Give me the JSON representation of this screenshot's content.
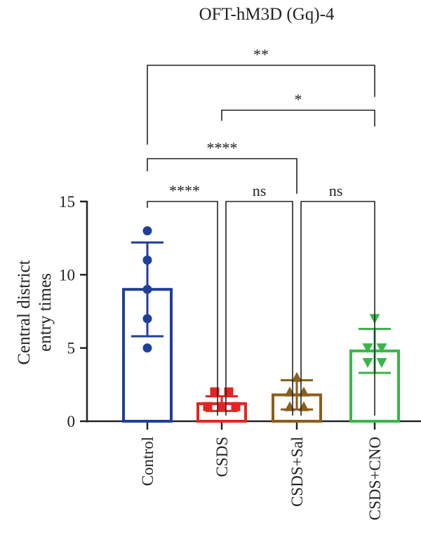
{
  "chart_data": {
    "type": "bar",
    "title": "OFT-hM3D (Gq)-4",
    "xlabel": "",
    "ylabel": [
      "Central district",
      "entry times"
    ],
    "ylim": [
      0,
      15
    ],
    "yticks": [
      0,
      5,
      10,
      15
    ],
    "grid": false,
    "categories": [
      "Control",
      "CSDS",
      "CSDS+Sal",
      "CSDS+CNO"
    ],
    "colors": [
      "#1f3f9a",
      "#e52421",
      "#8b5e1a",
      "#3bb54a"
    ],
    "markers": [
      "circle",
      "square",
      "triangle-up",
      "triangle-down"
    ],
    "values": [
      9.0,
      1.2,
      1.8,
      4.8
    ],
    "sd": [
      3.2,
      0.5,
      1.0,
      1.5
    ],
    "points": [
      [
        13,
        11,
        9,
        7,
        5
      ],
      [
        2,
        2,
        1,
        1,
        1
      ],
      [
        3,
        2,
        2,
        1,
        1
      ],
      [
        7,
        5,
        5,
        4,
        4
      ]
    ],
    "comparisons": [
      {
        "from": 0,
        "to": 1,
        "label": "****"
      },
      {
        "from": 1,
        "to": 2,
        "label": "ns"
      },
      {
        "from": 2,
        "to": 3,
        "label": "ns"
      },
      {
        "from": 0,
        "to": 2,
        "label": "****"
      },
      {
        "from": 1,
        "to": 3,
        "label": "*"
      },
      {
        "from": 0,
        "to": 3,
        "label": "**"
      }
    ]
  }
}
